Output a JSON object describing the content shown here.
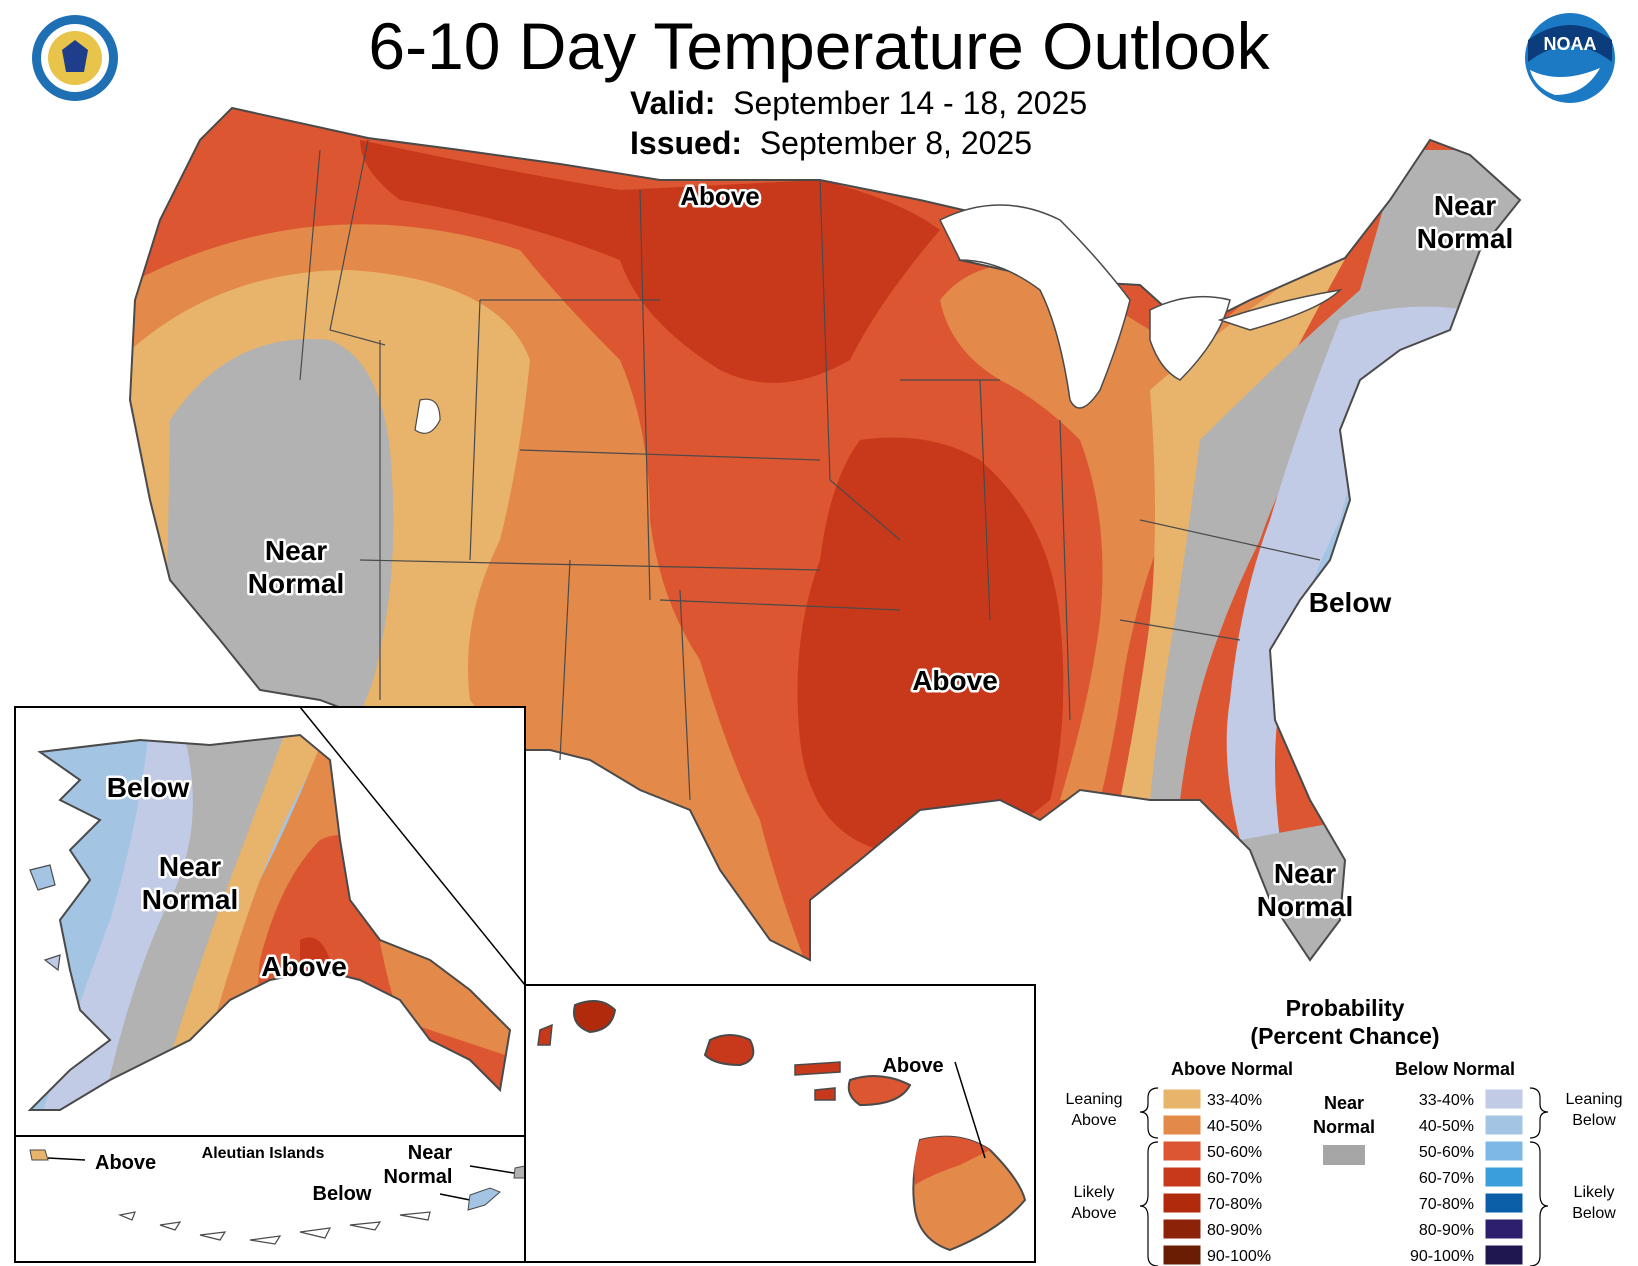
{
  "header": {
    "title": "6-10 Day Temperature Outlook",
    "valid_label": "Valid:",
    "valid_value": "September 14 - 18, 2025",
    "issued_label": "Issued:",
    "issued_value": "September 8, 2025",
    "left_logo_icon": "department-of-commerce-seal-icon",
    "right_logo_icon": "noaa-logo-icon",
    "noaa_text": "NOAA"
  },
  "map_labels": {
    "conus_above_north": "Above",
    "conus_above_south": "Above",
    "conus_near_west_1": "Near",
    "conus_near_west_2": "Normal",
    "conus_near_ne_1": "Near",
    "conus_near_ne_2": "Normal",
    "conus_below_east": "Below",
    "conus_near_fl_1": "Near",
    "conus_near_fl_2": "Normal",
    "ak_below": "Below",
    "ak_near_1": "Near",
    "ak_near_2": "Normal",
    "ak_above": "Above",
    "aleutian_title": "Aleutian Islands",
    "aleutian_above": "Above",
    "aleutian_near_1": "Near",
    "aleutian_near_2": "Normal",
    "aleutian_below": "Below",
    "hawaii_above": "Above"
  },
  "legend": {
    "title_1": "Probability",
    "title_2": "(Percent Chance)",
    "above_header": "Above Normal",
    "below_header": "Below Normal",
    "near_header_1": "Near",
    "near_header_2": "Normal",
    "leaning_above_1": "Leaning",
    "leaning_above_2": "Above",
    "likely_above_1": "Likely",
    "likely_above_2": "Above",
    "leaning_below_1": "Leaning",
    "leaning_below_2": "Below",
    "likely_below_1": "Likely",
    "likely_below_2": "Below",
    "near_color": "#a6a6a6",
    "above": [
      {
        "label": "33-40%",
        "color": "#e8b36b"
      },
      {
        "label": "40-50%",
        "color": "#e3894a"
      },
      {
        "label": "50-60%",
        "color": "#db5631"
      },
      {
        "label": "60-70%",
        "color": "#c8391c"
      },
      {
        "label": "70-80%",
        "color": "#b22a0c"
      },
      {
        "label": "80-90%",
        "color": "#8c2308"
      },
      {
        "label": "90-100%",
        "color": "#6b1d04"
      }
    ],
    "below": [
      {
        "label": "33-40%",
        "color": "#c2cbe6"
      },
      {
        "label": "40-50%",
        "color": "#a3c4e3"
      },
      {
        "label": "50-60%",
        "color": "#7db8e6"
      },
      {
        "label": "60-70%",
        "color": "#3a9edc"
      },
      {
        "label": "70-80%",
        "color": "#0a5fa8"
      },
      {
        "label": "80-90%",
        "color": "#2e1f6e"
      },
      {
        "label": "90-100%",
        "color": "#1f1850"
      }
    ]
  }
}
